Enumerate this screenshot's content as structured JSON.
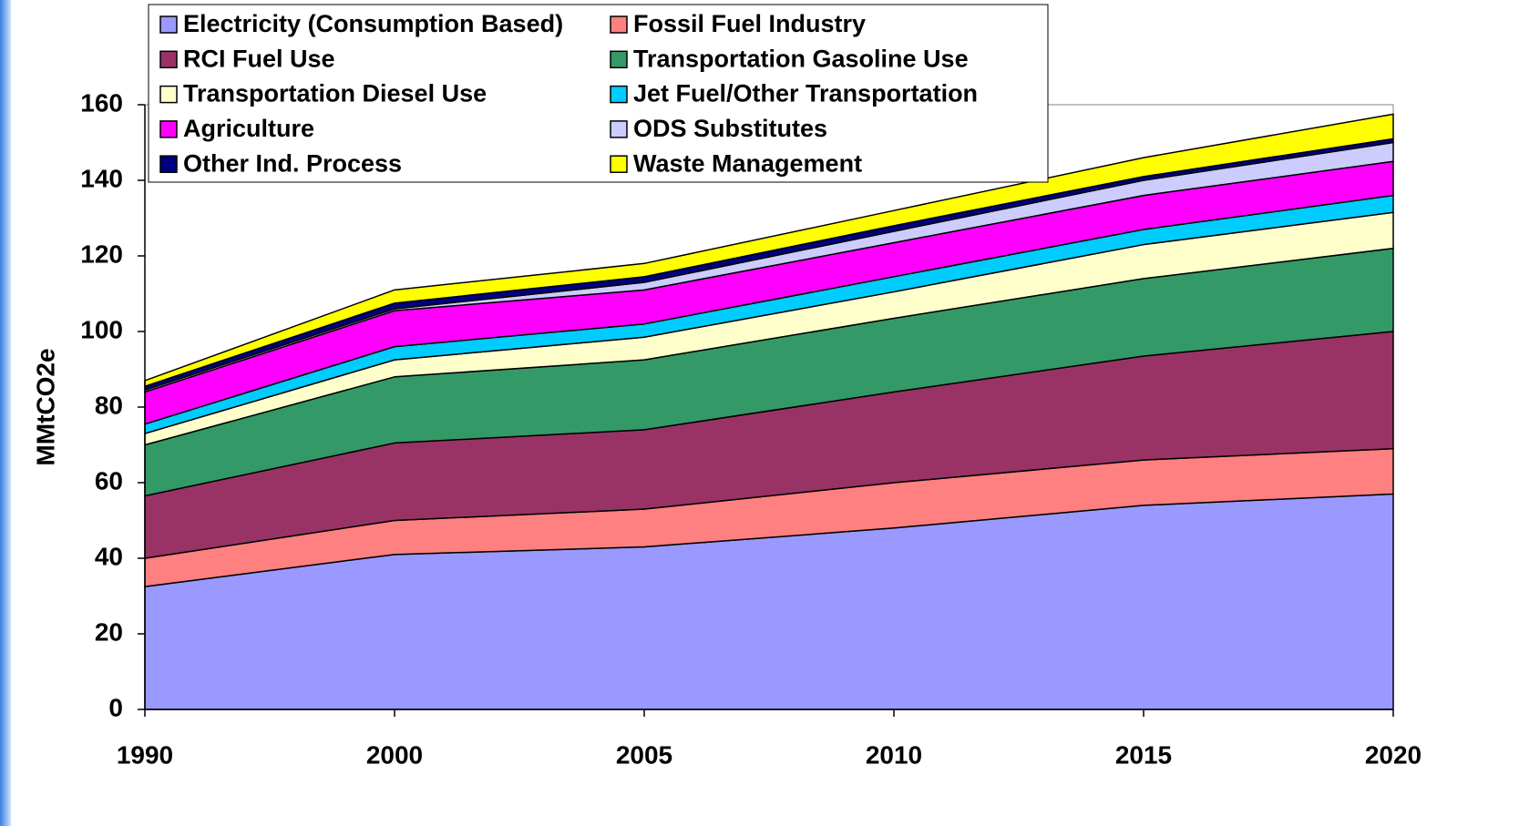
{
  "chart_data": {
    "type": "stacked_area",
    "y_label": "MMtCO2e",
    "categories": [
      "1990",
      "2000",
      "2005",
      "2010",
      "2015",
      "2020"
    ],
    "series": [
      {
        "name": "Electricity (Consumption Based)",
        "color": "#9999ff",
        "values": [
          32.5,
          41,
          43,
          48,
          54,
          57
        ]
      },
      {
        "name": "Fossil Fuel Industry",
        "color": "#ff8080",
        "values": [
          7.5,
          9,
          10,
          12,
          12,
          12
        ]
      },
      {
        "name": "RCI Fuel Use",
        "color": "#993366",
        "values": [
          16.5,
          20.5,
          21,
          24,
          27.5,
          31
        ]
      },
      {
        "name": "Transportation Gasoline Use",
        "color": "#339966",
        "values": [
          13.5,
          17.5,
          18.5,
          19.5,
          20.5,
          22
        ]
      },
      {
        "name": "Transportation Diesel Use",
        "color": "#ffffcc",
        "values": [
          3,
          4.5,
          6,
          7,
          9,
          9.5
        ]
      },
      {
        "name": "Jet Fuel/Other Transportation",
        "color": "#00ccff",
        "values": [
          2.5,
          3.5,
          3.5,
          4,
          4,
          4.5
        ]
      },
      {
        "name": "Agriculture",
        "color": "#ff00ff",
        "values": [
          8.5,
          9.5,
          9,
          9,
          9,
          9
        ]
      },
      {
        "name": "ODS Substitutes",
        "color": "#ccccff",
        "values": [
          0.5,
          0.5,
          2,
          3,
          4,
          5
        ]
      },
      {
        "name": "Other Ind. Process",
        "color": "#000080",
        "values": [
          1,
          1.5,
          1.5,
          1.5,
          1,
          1
        ]
      },
      {
        "name": "Waste Management",
        "color": "#ffff00",
        "values": [
          1.5,
          3.5,
          3.5,
          4,
          5,
          6.5
        ]
      }
    ],
    "ylim": [
      0,
      160
    ],
    "yticks": [
      0,
      20,
      40,
      60,
      80,
      100,
      120,
      140,
      160
    ]
  }
}
